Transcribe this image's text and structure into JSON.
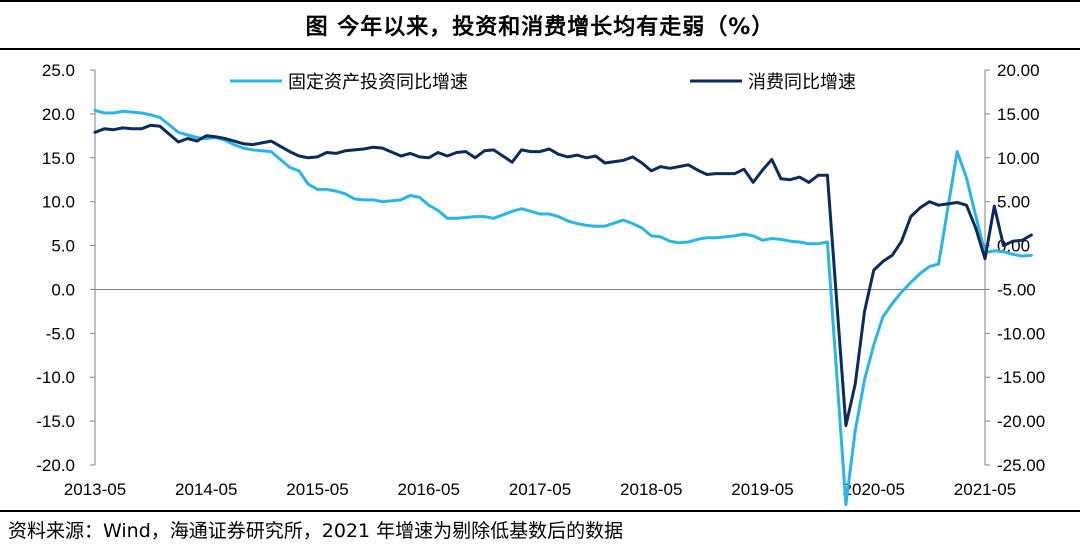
{
  "header": {
    "title": "图  今年以来，投资和消费增长均有走弱（%）"
  },
  "footer": {
    "source": "资料来源：Wind，海通证券研究所，2021 年增速为剔除低基数后的数据"
  },
  "chart_data": {
    "type": "line",
    "title": "图  今年以来，投资和消费增长均有走弱（%）",
    "x_ticks": [
      "2013-05",
      "2014-05",
      "2015-05",
      "2016-05",
      "2017-05",
      "2018-05",
      "2019-05",
      "2020-05",
      "2021-05"
    ],
    "y_left": {
      "lim": [
        -20,
        25
      ],
      "ticks": [
        "25.0",
        "20.0",
        "15.0",
        "10.0",
        "5.0",
        "0.0",
        "-5.0",
        "-10.0",
        "-15.0",
        "-20.0"
      ]
    },
    "y_right": {
      "lim": [
        -25,
        20
      ],
      "ticks": [
        "20.00",
        "15.00",
        "10.00",
        "5.00",
        "0.00",
        "-5.00",
        "-10.00",
        "-15.00",
        "-20.00",
        "-25.00"
      ]
    },
    "grid": false,
    "legend_position": "top",
    "series": [
      {
        "name": "固定资产投资同比增速",
        "axis": "left",
        "color": "#29b5e8",
        "points": [
          [
            "2013-05",
            20.4
          ],
          [
            "2013-06",
            20.1
          ],
          [
            "2013-07",
            20.1
          ],
          [
            "2013-08",
            20.3
          ],
          [
            "2013-09",
            20.2
          ],
          [
            "2013-10",
            20.1
          ],
          [
            "2013-11",
            19.9
          ],
          [
            "2013-12",
            19.6
          ],
          [
            "2014-02",
            17.9
          ],
          [
            "2014-03",
            17.6
          ],
          [
            "2014-04",
            17.3
          ],
          [
            "2014-05",
            17.2
          ],
          [
            "2014-06",
            17.3
          ],
          [
            "2014-07",
            17.0
          ],
          [
            "2014-08",
            16.5
          ],
          [
            "2014-09",
            16.1
          ],
          [
            "2014-10",
            15.9
          ],
          [
            "2014-11",
            15.8
          ],
          [
            "2014-12",
            15.7
          ],
          [
            "2015-02",
            13.9
          ],
          [
            "2015-03",
            13.5
          ],
          [
            "2015-04",
            12.0
          ],
          [
            "2015-05",
            11.4
          ],
          [
            "2015-06",
            11.4
          ],
          [
            "2015-07",
            11.2
          ],
          [
            "2015-08",
            10.9
          ],
          [
            "2015-09",
            10.3
          ],
          [
            "2015-10",
            10.2
          ],
          [
            "2015-11",
            10.2
          ],
          [
            "2015-12",
            10.0
          ],
          [
            "2016-02",
            10.2
          ],
          [
            "2016-03",
            10.7
          ],
          [
            "2016-04",
            10.5
          ],
          [
            "2016-05",
            9.6
          ],
          [
            "2016-06",
            9.0
          ],
          [
            "2016-07",
            8.1
          ],
          [
            "2016-08",
            8.1
          ],
          [
            "2016-09",
            8.2
          ],
          [
            "2016-10",
            8.3
          ],
          [
            "2016-11",
            8.3
          ],
          [
            "2016-12",
            8.1
          ],
          [
            "2017-02",
            8.9
          ],
          [
            "2017-03",
            9.2
          ],
          [
            "2017-04",
            8.9
          ],
          [
            "2017-05",
            8.6
          ],
          [
            "2017-06",
            8.6
          ],
          [
            "2017-07",
            8.3
          ],
          [
            "2017-08",
            7.8
          ],
          [
            "2017-09",
            7.5
          ],
          [
            "2017-10",
            7.3
          ],
          [
            "2017-11",
            7.2
          ],
          [
            "2017-12",
            7.2
          ],
          [
            "2018-02",
            7.9
          ],
          [
            "2018-03",
            7.5
          ],
          [
            "2018-04",
            7.0
          ],
          [
            "2018-05",
            6.1
          ],
          [
            "2018-06",
            6.0
          ],
          [
            "2018-07",
            5.5
          ],
          [
            "2018-08",
            5.3
          ],
          [
            "2018-09",
            5.4
          ],
          [
            "2018-10",
            5.7
          ],
          [
            "2018-11",
            5.9
          ],
          [
            "2018-12",
            5.9
          ],
          [
            "2019-02",
            6.1
          ],
          [
            "2019-03",
            6.3
          ],
          [
            "2019-04",
            6.1
          ],
          [
            "2019-05",
            5.6
          ],
          [
            "2019-06",
            5.8
          ],
          [
            "2019-07",
            5.7
          ],
          [
            "2019-08",
            5.5
          ],
          [
            "2019-09",
            5.4
          ],
          [
            "2019-10",
            5.2
          ],
          [
            "2019-11",
            5.2
          ],
          [
            "2019-12",
            5.4
          ],
          [
            "2020-02",
            -24.5
          ],
          [
            "2020-03",
            -16.1
          ],
          [
            "2020-04",
            -10.3
          ],
          [
            "2020-05",
            -6.3
          ],
          [
            "2020-06",
            -3.1
          ],
          [
            "2020-07",
            -1.6
          ],
          [
            "2020-08",
            -0.3
          ],
          [
            "2020-09",
            0.8
          ],
          [
            "2020-10",
            1.8
          ],
          [
            "2020-11",
            2.6
          ],
          [
            "2020-12",
            2.9
          ],
          [
            "2021-02",
            15.7
          ],
          [
            "2021-03",
            12.7
          ],
          [
            "2021-04",
            8.4
          ],
          [
            "2021-05",
            4.2
          ],
          [
            "2021-06",
            4.4
          ],
          [
            "2021-07",
            4.3
          ],
          [
            "2021-08",
            4.0
          ],
          [
            "2021-09",
            3.8
          ],
          [
            "2021-10",
            3.9
          ]
        ]
      },
      {
        "name": "消费同比增速",
        "axis": "right",
        "color": "#0d2a5c",
        "points": [
          [
            "2013-05",
            12.9
          ],
          [
            "2013-06",
            13.3
          ],
          [
            "2013-07",
            13.2
          ],
          [
            "2013-08",
            13.4
          ],
          [
            "2013-09",
            13.3
          ],
          [
            "2013-10",
            13.3
          ],
          [
            "2013-11",
            13.7
          ],
          [
            "2013-12",
            13.6
          ],
          [
            "2014-02",
            11.8
          ],
          [
            "2014-03",
            12.2
          ],
          [
            "2014-04",
            11.9
          ],
          [
            "2014-05",
            12.5
          ],
          [
            "2014-06",
            12.4
          ],
          [
            "2014-07",
            12.2
          ],
          [
            "2014-08",
            11.9
          ],
          [
            "2014-09",
            11.6
          ],
          [
            "2014-10",
            11.5
          ],
          [
            "2014-11",
            11.7
          ],
          [
            "2014-12",
            11.9
          ],
          [
            "2015-02",
            10.7
          ],
          [
            "2015-03",
            10.2
          ],
          [
            "2015-04",
            10.0
          ],
          [
            "2015-05",
            10.1
          ],
          [
            "2015-06",
            10.6
          ],
          [
            "2015-07",
            10.5
          ],
          [
            "2015-08",
            10.8
          ],
          [
            "2015-09",
            10.9
          ],
          [
            "2015-10",
            11.0
          ],
          [
            "2015-11",
            11.2
          ],
          [
            "2015-12",
            11.1
          ],
          [
            "2016-02",
            10.2
          ],
          [
            "2016-03",
            10.5
          ],
          [
            "2016-04",
            10.1
          ],
          [
            "2016-05",
            10.0
          ],
          [
            "2016-06",
            10.6
          ],
          [
            "2016-07",
            10.2
          ],
          [
            "2016-08",
            10.6
          ],
          [
            "2016-09",
            10.7
          ],
          [
            "2016-10",
            10.0
          ],
          [
            "2016-11",
            10.8
          ],
          [
            "2016-12",
            10.9
          ],
          [
            "2017-02",
            9.5
          ],
          [
            "2017-03",
            10.9
          ],
          [
            "2017-04",
            10.7
          ],
          [
            "2017-05",
            10.7
          ],
          [
            "2017-06",
            11.0
          ],
          [
            "2017-07",
            10.4
          ],
          [
            "2017-08",
            10.1
          ],
          [
            "2017-09",
            10.3
          ],
          [
            "2017-10",
            10.0
          ],
          [
            "2017-11",
            10.2
          ],
          [
            "2017-12",
            9.4
          ],
          [
            "2018-02",
            9.7
          ],
          [
            "2018-03",
            10.1
          ],
          [
            "2018-04",
            9.4
          ],
          [
            "2018-05",
            8.5
          ],
          [
            "2018-06",
            9.0
          ],
          [
            "2018-07",
            8.8
          ],
          [
            "2018-08",
            9.0
          ],
          [
            "2018-09",
            9.2
          ],
          [
            "2018-10",
            8.6
          ],
          [
            "2018-11",
            8.1
          ],
          [
            "2018-12",
            8.2
          ],
          [
            "2019-02",
            8.2
          ],
          [
            "2019-03",
            8.7
          ],
          [
            "2019-04",
            7.2
          ],
          [
            "2019-05",
            8.6
          ],
          [
            "2019-06",
            9.8
          ],
          [
            "2019-07",
            7.6
          ],
          [
            "2019-08",
            7.5
          ],
          [
            "2019-09",
            7.8
          ],
          [
            "2019-10",
            7.2
          ],
          [
            "2019-11",
            8.0
          ],
          [
            "2019-12",
            8.0
          ],
          [
            "2020-02",
            -20.5
          ],
          [
            "2020-03",
            -15.8
          ],
          [
            "2020-04",
            -7.5
          ],
          [
            "2020-05",
            -2.8
          ],
          [
            "2020-06",
            -1.8
          ],
          [
            "2020-07",
            -1.1
          ],
          [
            "2020-08",
            0.5
          ],
          [
            "2020-09",
            3.3
          ],
          [
            "2020-10",
            4.3
          ],
          [
            "2020-11",
            5.0
          ],
          [
            "2020-12",
            4.6
          ],
          [
            "2021-02",
            4.9
          ],
          [
            "2021-03",
            4.6
          ],
          [
            "2021-04",
            2.0
          ],
          [
            "2021-05",
            -1.5
          ],
          [
            "2021-06",
            4.5
          ],
          [
            "2021-07",
            0.0
          ],
          [
            "2021-08",
            0.5
          ],
          [
            "2021-09",
            0.6
          ],
          [
            "2021-10",
            1.2
          ]
        ]
      }
    ]
  }
}
